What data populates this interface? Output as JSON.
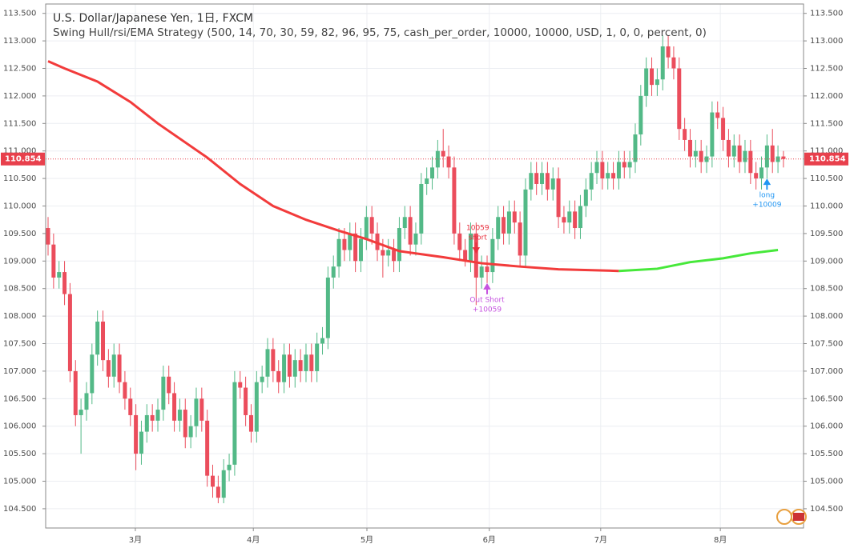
{
  "chart_data": {
    "type": "candlestick",
    "title": "U.S. Dollar/Japanese Yen, 1日, FXCM",
    "subtitle": "Swing Hull/rsi/EMA Strategy (500, 14, 70, 30, 59, 82, 96, 95, 75, cash_per_order, 10000, 10000, USD, 1, 0, 0, percent, 0)",
    "up_color": "#53b987",
    "down_color": "#eb4d5c",
    "ohlc": [
      [
        109.6,
        109.8,
        109.1,
        109.3
      ],
      [
        109.3,
        109.5,
        108.5,
        108.7
      ],
      [
        108.7,
        109.0,
        108.5,
        108.8
      ],
      [
        108.8,
        109.0,
        108.2,
        108.4
      ],
      [
        108.4,
        108.6,
        106.8,
        107.0
      ],
      [
        107.0,
        107.2,
        106.0,
        106.2
      ],
      [
        106.2,
        106.5,
        105.5,
        106.3
      ],
      [
        106.3,
        106.8,
        106.1,
        106.6
      ],
      [
        106.6,
        107.5,
        106.4,
        107.3
      ],
      [
        107.3,
        108.1,
        107.1,
        107.9
      ],
      [
        107.9,
        108.1,
        107.0,
        107.2
      ],
      [
        107.2,
        107.4,
        106.7,
        106.9
      ],
      [
        106.9,
        107.5,
        106.7,
        107.3
      ],
      [
        107.3,
        107.5,
        106.6,
        106.8
      ],
      [
        106.8,
        107.0,
        106.3,
        106.5
      ],
      [
        106.5,
        106.7,
        106.0,
        106.2
      ],
      [
        106.2,
        106.4,
        105.2,
        105.5
      ],
      [
        105.5,
        106.1,
        105.3,
        105.9
      ],
      [
        105.9,
        106.4,
        105.7,
        106.2
      ],
      [
        106.2,
        106.4,
        105.9,
        106.1
      ],
      [
        106.1,
        106.5,
        105.9,
        106.3
      ],
      [
        106.3,
        107.1,
        106.1,
        106.9
      ],
      [
        106.9,
        107.1,
        106.4,
        106.6
      ],
      [
        106.6,
        106.8,
        105.9,
        106.1
      ],
      [
        106.1,
        106.5,
        105.9,
        106.3
      ],
      [
        106.3,
        106.5,
        105.6,
        105.8
      ],
      [
        105.8,
        106.2,
        105.6,
        106.0
      ],
      [
        106.0,
        106.7,
        105.8,
        106.5
      ],
      [
        106.5,
        106.7,
        105.9,
        106.1
      ],
      [
        106.1,
        106.3,
        104.9,
        105.1
      ],
      [
        105.1,
        105.3,
        104.7,
        104.9
      ],
      [
        104.9,
        105.1,
        104.6,
        104.7
      ],
      [
        104.7,
        105.4,
        104.6,
        105.2
      ],
      [
        105.2,
        105.5,
        105.0,
        105.3
      ],
      [
        105.3,
        107.0,
        105.1,
        106.8
      ],
      [
        106.8,
        107.0,
        106.5,
        106.7
      ],
      [
        106.7,
        106.9,
        106.0,
        106.2
      ],
      [
        106.2,
        106.4,
        105.7,
        105.9
      ],
      [
        105.9,
        107.0,
        105.7,
        106.8
      ],
      [
        106.8,
        107.1,
        106.6,
        106.9
      ],
      [
        106.9,
        107.6,
        106.7,
        107.4
      ],
      [
        107.4,
        107.6,
        106.8,
        107.0
      ],
      [
        107.0,
        107.2,
        106.6,
        106.8
      ],
      [
        106.8,
        107.5,
        106.6,
        107.3
      ],
      [
        107.3,
        107.5,
        106.7,
        106.9
      ],
      [
        106.9,
        107.4,
        106.7,
        107.2
      ],
      [
        107.2,
        107.4,
        106.8,
        107.0
      ],
      [
        107.0,
        107.5,
        106.8,
        107.3
      ],
      [
        107.3,
        107.5,
        106.8,
        107.0
      ],
      [
        107.0,
        107.7,
        106.8,
        107.5
      ],
      [
        107.5,
        107.8,
        107.3,
        107.6
      ],
      [
        107.6,
        108.9,
        107.4,
        108.7
      ],
      [
        108.7,
        109.1,
        108.5,
        108.9
      ],
      [
        108.9,
        109.6,
        108.7,
        109.4
      ],
      [
        109.4,
        109.6,
        109.0,
        109.2
      ],
      [
        109.2,
        109.7,
        109.0,
        109.5
      ],
      [
        109.5,
        109.7,
        108.8,
        109.0
      ],
      [
        109.0,
        109.6,
        108.8,
        109.4
      ],
      [
        109.4,
        110.0,
        109.2,
        109.8
      ],
      [
        109.8,
        110.0,
        109.3,
        109.5
      ],
      [
        109.5,
        109.7,
        109.0,
        109.2
      ],
      [
        109.2,
        109.4,
        108.7,
        109.1
      ],
      [
        109.1,
        109.4,
        108.9,
        109.2
      ],
      [
        109.2,
        109.4,
        108.8,
        109.0
      ],
      [
        109.0,
        109.8,
        108.8,
        109.6
      ],
      [
        109.6,
        110.0,
        109.4,
        109.8
      ],
      [
        109.8,
        110.0,
        109.1,
        109.3
      ],
      [
        109.3,
        109.7,
        109.1,
        109.5
      ],
      [
        109.5,
        110.6,
        109.3,
        110.4
      ],
      [
        110.4,
        110.7,
        110.2,
        110.5
      ],
      [
        110.5,
        110.9,
        110.3,
        110.7
      ],
      [
        110.7,
        111.2,
        110.5,
        111.0
      ],
      [
        111.0,
        111.4,
        110.7,
        110.9
      ],
      [
        110.9,
        111.1,
        110.5,
        110.7
      ],
      [
        110.7,
        110.9,
        109.3,
        109.5
      ],
      [
        109.5,
        109.7,
        109.0,
        109.2
      ],
      [
        109.2,
        109.4,
        108.9,
        109.0
      ],
      [
        109.0,
        109.7,
        108.8,
        109.5
      ],
      [
        109.5,
        109.7,
        108.2,
        108.7
      ],
      [
        108.7,
        109.1,
        108.5,
        108.9
      ],
      [
        108.9,
        109.1,
        108.6,
        108.8
      ],
      [
        108.8,
        109.6,
        108.6,
        109.4
      ],
      [
        109.4,
        110.0,
        109.2,
        109.8
      ],
      [
        109.8,
        110.0,
        109.3,
        109.5
      ],
      [
        109.5,
        110.1,
        109.3,
        109.9
      ],
      [
        109.9,
        110.1,
        109.5,
        109.7
      ],
      [
        109.7,
        109.9,
        108.9,
        109.1
      ],
      [
        109.1,
        110.5,
        108.9,
        110.3
      ],
      [
        110.3,
        110.8,
        110.1,
        110.6
      ],
      [
        110.6,
        110.8,
        110.2,
        110.4
      ],
      [
        110.4,
        110.8,
        110.2,
        110.6
      ],
      [
        110.6,
        110.8,
        110.1,
        110.3
      ],
      [
        110.3,
        110.7,
        110.1,
        110.5
      ],
      [
        110.5,
        110.7,
        109.6,
        109.8
      ],
      [
        109.8,
        110.0,
        109.5,
        109.7
      ],
      [
        109.7,
        110.1,
        109.5,
        109.9
      ],
      [
        109.9,
        110.1,
        109.4,
        109.6
      ],
      [
        109.6,
        110.2,
        109.4,
        110.0
      ],
      [
        110.0,
        110.5,
        109.8,
        110.3
      ],
      [
        110.3,
        110.8,
        110.1,
        110.6
      ],
      [
        110.6,
        111.0,
        110.4,
        110.8
      ],
      [
        110.8,
        111.0,
        110.3,
        110.5
      ],
      [
        110.5,
        110.8,
        110.3,
        110.6
      ],
      [
        110.6,
        110.8,
        110.3,
        110.5
      ],
      [
        110.5,
        111.0,
        110.3,
        110.8
      ],
      [
        110.8,
        111.0,
        110.5,
        110.7
      ],
      [
        110.7,
        111.0,
        110.5,
        110.8
      ],
      [
        110.8,
        111.5,
        110.6,
        111.3
      ],
      [
        111.3,
        112.2,
        111.1,
        112.0
      ],
      [
        112.0,
        112.7,
        111.8,
        112.5
      ],
      [
        112.5,
        112.7,
        112.0,
        112.2
      ],
      [
        112.2,
        112.5,
        112.0,
        112.3
      ],
      [
        112.3,
        113.1,
        112.1,
        112.9
      ],
      [
        112.9,
        113.1,
        112.5,
        112.7
      ],
      [
        112.7,
        112.9,
        112.3,
        112.5
      ],
      [
        112.5,
        112.7,
        111.2,
        111.4
      ],
      [
        111.4,
        111.6,
        111.0,
        111.2
      ],
      [
        111.2,
        111.4,
        110.7,
        110.9
      ],
      [
        110.9,
        111.2,
        110.7,
        111.0
      ],
      [
        111.0,
        111.2,
        110.6,
        110.8
      ],
      [
        110.8,
        111.1,
        110.6,
        110.9
      ],
      [
        110.9,
        111.9,
        110.7,
        111.7
      ],
      [
        111.7,
        111.9,
        111.4,
        111.6
      ],
      [
        111.6,
        111.8,
        111.0,
        111.2
      ],
      [
        111.2,
        111.4,
        110.7,
        110.9
      ],
      [
        110.9,
        111.3,
        110.7,
        111.1
      ],
      [
        111.1,
        111.3,
        110.6,
        110.8
      ],
      [
        110.8,
        111.2,
        110.6,
        111.0
      ],
      [
        111.0,
        111.2,
        110.4,
        110.6
      ],
      [
        110.6,
        110.8,
        110.3,
        110.5
      ],
      [
        110.5,
        110.9,
        110.3,
        110.7
      ],
      [
        110.7,
        111.3,
        110.5,
        111.1
      ],
      [
        111.1,
        111.4,
        110.6,
        110.8
      ],
      [
        110.8,
        111.1,
        110.6,
        110.9
      ],
      [
        110.9,
        111.0,
        110.7,
        110.854
      ]
    ],
    "series": [
      {
        "color": "#f23b3b",
        "x": [
          0,
          3,
          9,
          15,
          20,
          29,
          35,
          41,
          47,
          53,
          58,
          64,
          72,
          79,
          86,
          93,
          104
        ],
        "values": [
          112.63,
          112.5,
          112.26,
          111.89,
          111.5,
          110.88,
          110.4,
          110.0,
          109.75,
          109.55,
          109.4,
          109.18,
          109.07,
          108.96,
          108.9,
          108.85,
          108.82
        ]
      },
      {
        "color": "#46e83a",
        "x": [
          104,
          111,
          117,
          123,
          128,
          133
        ],
        "values": [
          108.82,
          108.86,
          108.98,
          109.05,
          109.14,
          109.2
        ]
      }
    ],
    "signals": [
      {
        "x": 78,
        "color": "#e8303f",
        "direction": "down",
        "text": [
          "10059",
          "short"
        ]
      },
      {
        "x": 80,
        "color": "#c653e0",
        "direction": "up",
        "text": [
          "Out Short",
          "+10059"
        ]
      },
      {
        "x": 131,
        "color": "#2196f3",
        "direction": "up",
        "text": [
          "long",
          "+10009"
        ]
      }
    ],
    "price_color": "#e8404c",
    "xlim": [
      -0.44,
      137.66
    ],
    "xticks": [
      {
        "value": 15.9,
        "label": "3月"
      },
      {
        "value": 37.4,
        "label": "4月"
      },
      {
        "value": 58.1,
        "label": "5月"
      },
      {
        "value": 80.4,
        "label": "6月"
      },
      {
        "value": 100.7,
        "label": "7月"
      },
      {
        "value": 122.5,
        "label": "8月"
      }
    ],
    "ylim": [
      104.15,
      113.67
    ],
    "yticks": [
      {
        "value": 104.5,
        "label": "104.500"
      },
      {
        "value": 105,
        "label": "105.000"
      },
      {
        "value": 105.5,
        "label": "105.500"
      },
      {
        "value": 106,
        "label": "106.000"
      },
      {
        "value": 106.5,
        "label": "106.500"
      },
      {
        "value": 107,
        "label": "107.000"
      },
      {
        "value": 107.5,
        "label": "107.500"
      },
      {
        "value": 108,
        "label": "108.000"
      },
      {
        "value": 108.5,
        "label": "108.500"
      },
      {
        "value": 109,
        "label": "109.000"
      },
      {
        "value": 109.5,
        "label": "109.500"
      },
      {
        "value": 110,
        "label": "110.000"
      },
      {
        "value": 110.5,
        "label": "110.500"
      },
      {
        "value": 111,
        "label": "111.000"
      },
      {
        "value": 111.5,
        "label": "111.500"
      },
      {
        "value": 112,
        "label": "112.000"
      },
      {
        "value": 112.5,
        "label": "112.500"
      },
      {
        "value": 113,
        "label": "113.000"
      },
      {
        "value": 113.5,
        "label": "113.500"
      }
    ],
    "grid": true
  }
}
